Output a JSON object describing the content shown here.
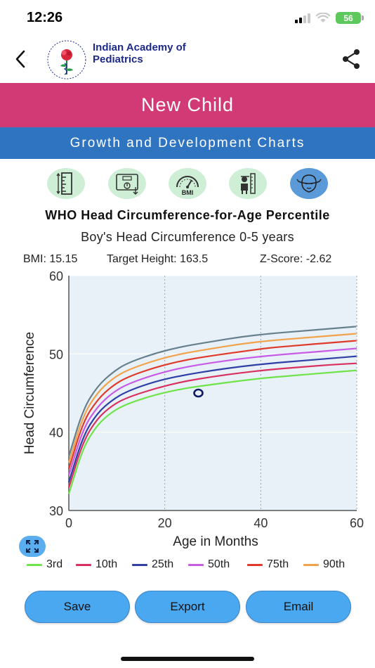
{
  "status_bar": {
    "time": "12:26",
    "battery": "56"
  },
  "header": {
    "org_name": "Indian Academy of Pediatrics"
  },
  "title": "New Child",
  "subtitle": "Growth and Development Charts",
  "chart_tabs": [
    {
      "name": "height-chart-icon",
      "label": ""
    },
    {
      "name": "weight-chart-icon",
      "label": ""
    },
    {
      "name": "bmi-chart-icon",
      "label": "BMI"
    },
    {
      "name": "target-height-icon",
      "label": ""
    },
    {
      "name": "head-circumference-icon",
      "label": ""
    }
  ],
  "stats": {
    "bmi": "BMI: 15.15",
    "target_height": "Target Height: 163.5",
    "zscore": "Z-Score: -2.62"
  },
  "chart_data": {
    "type": "line",
    "title": "WHO Head Circumference-for-Age Percentile",
    "subtitle": "Boy's Head Circumference 0-5 years",
    "xlabel": "Age in Months",
    "ylabel": "Head Circumference",
    "xlim": [
      0,
      60
    ],
    "ylim": [
      30,
      60
    ],
    "xticks": [
      0,
      20,
      40,
      60
    ],
    "yticks": [
      30,
      40,
      50,
      60
    ],
    "grid": "vertical-dashed",
    "legend_placement": "bottom",
    "x": [
      0,
      3,
      6,
      9,
      12,
      18,
      24,
      30,
      36,
      42,
      48,
      54,
      60
    ],
    "series": [
      {
        "name": "3rd",
        "color": "#6fe34a",
        "values": [
          32.1,
          38.1,
          41.0,
          42.6,
          43.6,
          44.8,
          45.6,
          46.1,
          46.6,
          47.0,
          47.3,
          47.6,
          47.9
        ]
      },
      {
        "name": "10th",
        "color": "#d9305f",
        "values": [
          32.9,
          38.9,
          41.8,
          43.4,
          44.4,
          45.6,
          46.5,
          47.1,
          47.6,
          48.0,
          48.3,
          48.6,
          48.8
        ]
      },
      {
        "name": "25th",
        "color": "#2e3fa6",
        "values": [
          33.6,
          39.6,
          42.5,
          44.1,
          45.2,
          46.5,
          47.3,
          47.9,
          48.4,
          48.8,
          49.1,
          49.4,
          49.7
        ]
      },
      {
        "name": "50th",
        "color": "#c85be6",
        "values": [
          34.5,
          40.5,
          43.3,
          45.0,
          46.1,
          47.4,
          48.3,
          48.9,
          49.4,
          49.8,
          50.1,
          50.4,
          50.7
        ]
      },
      {
        "name": "75th",
        "color": "#e03a2a",
        "values": [
          35.3,
          41.4,
          44.2,
          45.9,
          47.0,
          48.3,
          49.2,
          49.8,
          50.3,
          50.8,
          51.1,
          51.4,
          51.7
        ]
      },
      {
        "name": "90th",
        "color": "#f2a24a",
        "values": [
          36.1,
          42.2,
          45.1,
          46.8,
          47.9,
          49.2,
          50.1,
          50.7,
          51.3,
          51.7,
          52.0,
          52.3,
          52.6
        ]
      },
      {
        "name": "",
        "color": "#67808e",
        "values": [
          36.9,
          43.0,
          45.9,
          47.6,
          48.8,
          50.1,
          51.0,
          51.6,
          52.2,
          52.6,
          52.9,
          53.2,
          53.5
        ]
      }
    ],
    "points": [
      {
        "x": 27,
        "y": 45.0,
        "color": "#0f1a66"
      }
    ],
    "plot_bg": "#e8f1f8"
  },
  "actions": {
    "save": "Save",
    "export": "Export",
    "email": "Email"
  }
}
